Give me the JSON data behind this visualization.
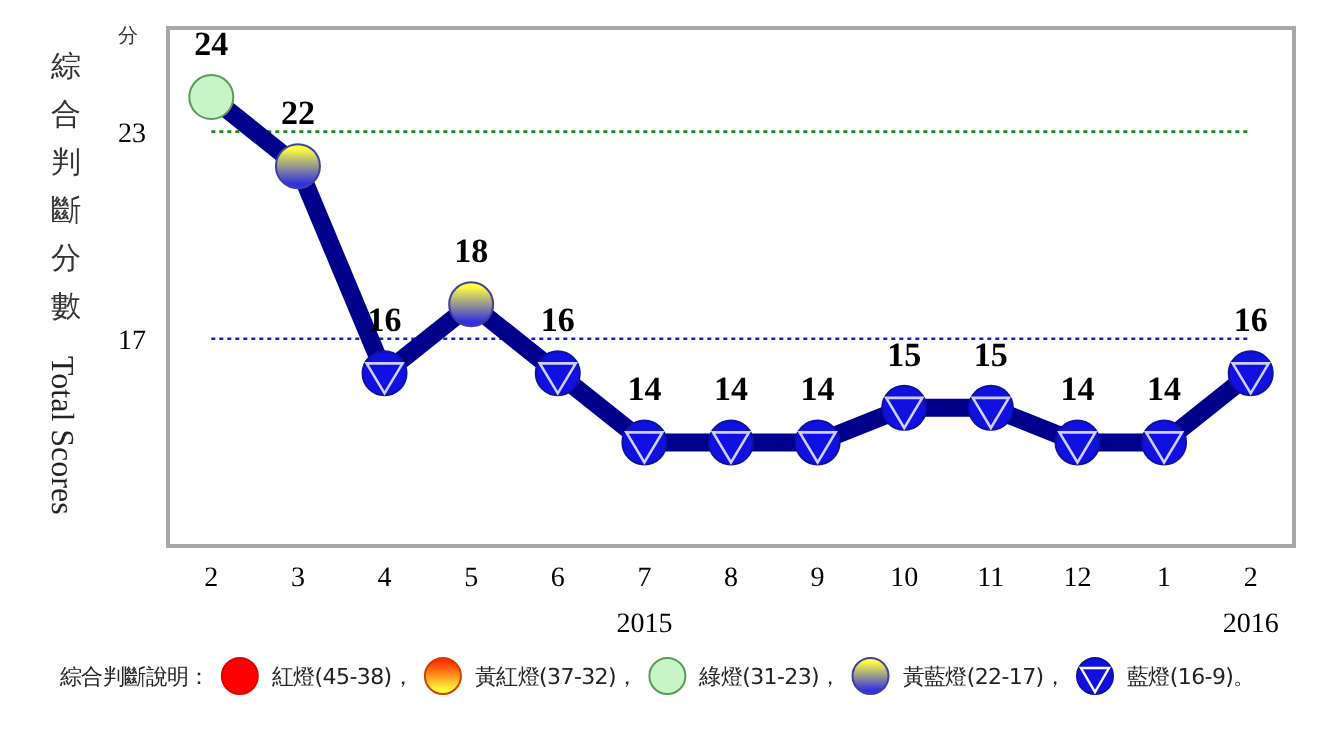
{
  "chart_data": {
    "type": "line",
    "ylabel": "綜合判斷分數 Total Scores",
    "categories": [
      "2",
      "3",
      "4",
      "5",
      "6",
      "7",
      "8",
      "9",
      "10",
      "11",
      "12",
      "1",
      "2"
    ],
    "values": [
      24,
      22,
      16,
      18,
      16,
      14,
      14,
      14,
      15,
      15,
      14,
      14,
      16
    ],
    "color": "#00008b",
    "colors": [
      "#c8f5c8",
      "#3030e0",
      "#1010e0",
      "#3030e0",
      "#1010e0",
      "#1010e0",
      "#1010e0",
      "#1010e0",
      "#1010e0",
      "#1010e0",
      "#1010e0",
      "#1010e0",
      "#1010e0"
    ],
    "marker": "circle",
    "data_labels": true,
    "ylim": [
      11,
      26
    ],
    "yticks": [
      17,
      23
    ],
    "ref_lines": [
      {
        "axis": "y",
        "value": 23,
        "color": "#1a8a1a",
        "line_style": "dotted"
      },
      {
        "axis": "y",
        "value": 17,
        "color": "#2020c0",
        "line_style": "dotted"
      }
    ],
    "annotations": [
      "分",
      "綜合判斷說明：",
      "紅燈(45-38)，",
      "黃紅燈(37-32)，",
      "綠燈(31-23)，",
      "黃藍燈(22-17)，",
      "藍燈(16-9)。",
      "2015",
      "2016"
    ]
  }
}
